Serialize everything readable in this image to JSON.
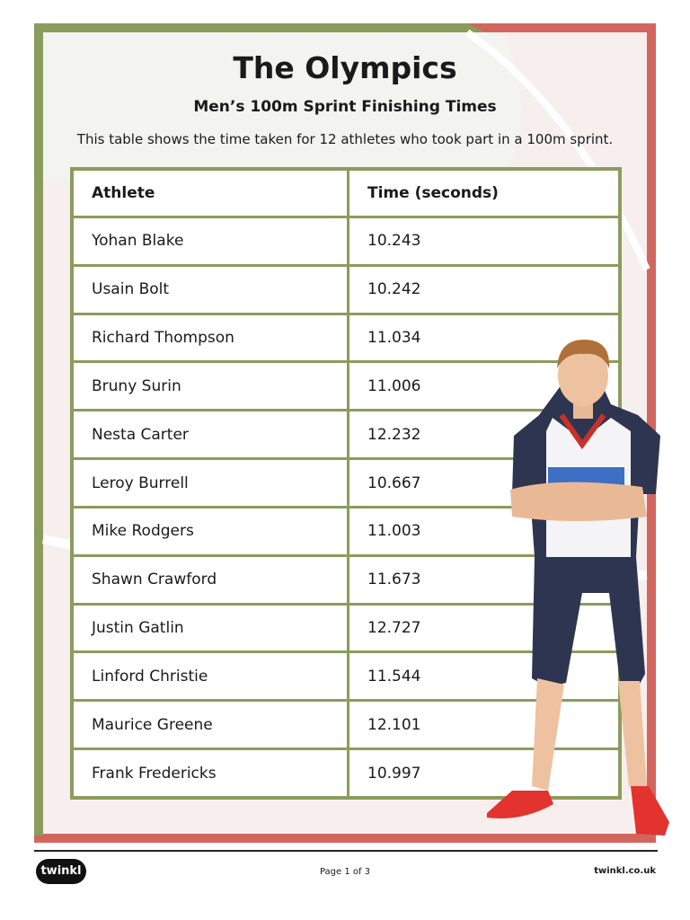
{
  "header": {
    "title": "The Olympics",
    "subtitle": "Men’s 100m Sprint Finishing Times",
    "description": "This table shows the time taken for 12 athletes who took part in a 100m sprint."
  },
  "table": {
    "columns": [
      "Athlete",
      "Time (seconds)"
    ],
    "rows": [
      [
        "Yohan Blake",
        "10.243"
      ],
      [
        "Usain Bolt",
        "10.242"
      ],
      [
        "Richard Thompson",
        "11.034"
      ],
      [
        "Bruny Surin",
        "11.006"
      ],
      [
        "Nesta Carter",
        "12.232"
      ],
      [
        "Leroy Burrell",
        "10.667"
      ],
      [
        "Mike Rodgers",
        "11.003"
      ],
      [
        "Shawn Crawford",
        "11.673"
      ],
      [
        "Justin Gatlin",
        "12.727"
      ],
      [
        "Linford Christie",
        "11.544"
      ],
      [
        "Maurice Greene",
        "12.101"
      ],
      [
        "Frank Fredericks",
        "10.997"
      ]
    ]
  },
  "footer": {
    "logo": "twinkl",
    "page": "Page 1 of 3",
    "site": "twinkl.co.uk"
  }
}
